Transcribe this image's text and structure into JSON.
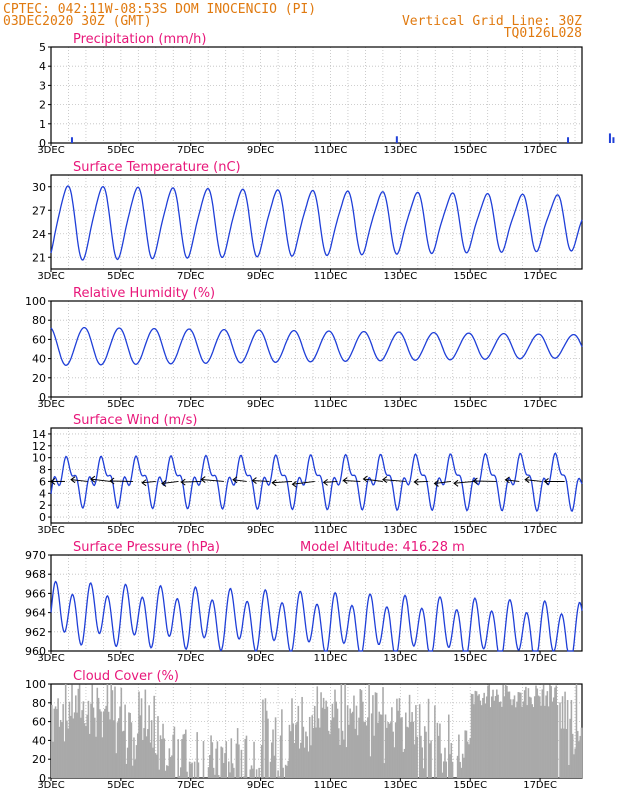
{
  "header": {
    "line1": "CPTEC:   042:11W-08:53S   DOM INOCENCIO (PI)",
    "line2_left": "03DEC2020 30Z (GMT)",
    "line2_right": "Vertical Grid Line: 30Z",
    "line3_right": "TQ0126L028"
  },
  "colors": {
    "header": "#e07a10",
    "panel_title": "#e8177a",
    "series": "#1f3fd8",
    "cloud_bars": "#a9a9a9",
    "wind_arrows": "#000000",
    "grid": "#bfbfbf"
  },
  "x_labels": [
    "3DEC",
    "5DEC",
    "7DEC",
    "9DEC",
    "11DEC",
    "13DEC",
    "15DEC",
    "17DEC"
  ],
  "chart_data": [
    {
      "type": "bar",
      "title": "Precipitation (mm/h)",
      "ylim": [
        0,
        5
      ],
      "yticks": [
        0,
        1,
        2,
        3,
        4,
        5
      ],
      "grid": true,
      "x": [
        0.6,
        9.9,
        14.8,
        16.0,
        16.1
      ],
      "values": [
        0.3,
        0.35,
        0.3,
        0.5,
        0.3
      ],
      "x_unit": "days since 3DEC"
    },
    {
      "type": "line",
      "title": "Surface Temperature (nC)",
      "ylim": [
        19.5,
        31.5
      ],
      "yticks": [
        21,
        24,
        27,
        30
      ],
      "grid": true,
      "series": [
        {
          "pattern": "diurnal",
          "mean": 25.5,
          "amplitude": 4.6,
          "amp_trend": -1.3
        }
      ]
    },
    {
      "type": "line",
      "title": "Relative Humidity (%)",
      "ylim": [
        0,
        100
      ],
      "yticks": [
        0,
        20,
        40,
        60,
        80,
        100
      ],
      "grid": true,
      "series": [
        {
          "pattern": "diurnal",
          "mean": 53,
          "amplitude": 20,
          "amp_trend": -8
        }
      ]
    },
    {
      "type": "line",
      "title": "Surface Wind (m/s)",
      "ylim": [
        -1,
        15
      ],
      "yticks": [
        0,
        2,
        4,
        6,
        8,
        10,
        12,
        14
      ],
      "grid": true,
      "series": [
        {
          "pattern": "diurnal",
          "mean": 6.2,
          "amplitude": 2.8,
          "amp_trend": 0.6
        }
      ],
      "wind_vectors": "arrows along 6 m/s line"
    },
    {
      "type": "line",
      "title": "Surface Pressure (hPa)",
      "subtitle": "Model Altitude: 416.28 m",
      "ylim": [
        960,
        970
      ],
      "yticks": [
        960,
        962,
        964,
        966,
        968,
        970
      ],
      "grid": true,
      "series": [
        {
          "pattern": "semidiurnal",
          "mean": 964,
          "amplitude": 2.6,
          "trend": -2.2
        }
      ]
    },
    {
      "type": "bar",
      "title": "Cloud Cover (%)",
      "ylim": [
        0,
        100
      ],
      "yticks": [
        0,
        20,
        40,
        60,
        80,
        100
      ],
      "grid": true,
      "series": [
        {
          "pattern": "noisy",
          "mean": 45
        }
      ]
    }
  ]
}
